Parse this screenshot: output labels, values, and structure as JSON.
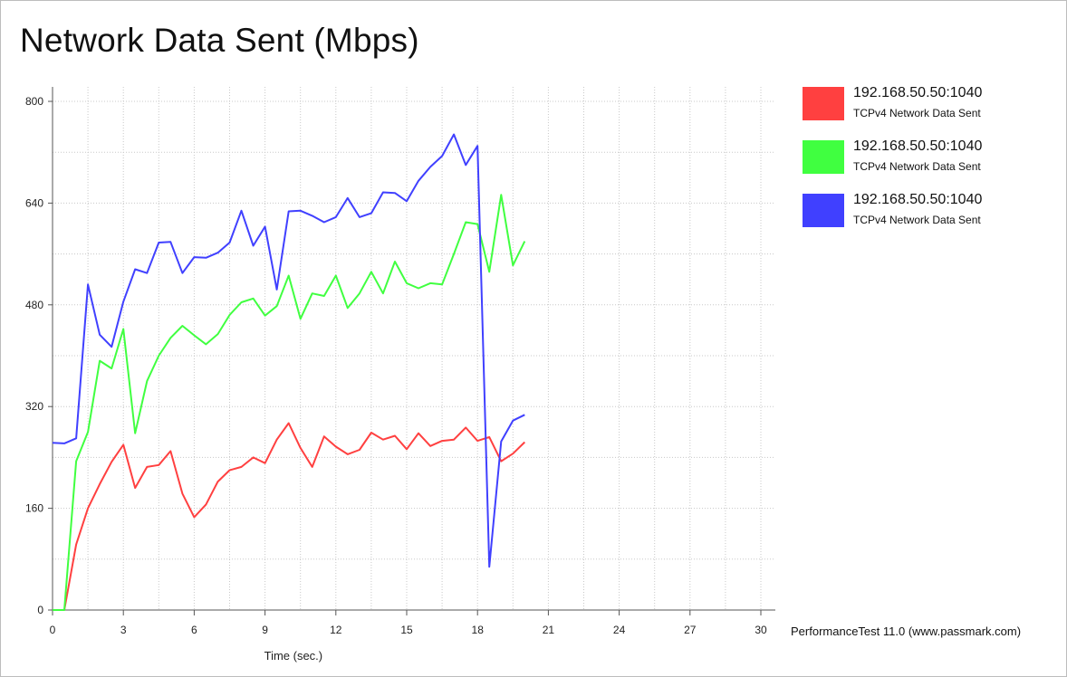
{
  "title": "Network Data Sent (Mbps)",
  "footer": "PerformanceTest 11.0 (www.passmark.com)",
  "chart_data": {
    "type": "line",
    "xlabel": "Time (sec.)",
    "ylabel": "",
    "xlim": [
      0,
      30
    ],
    "ylim": [
      0,
      800
    ],
    "xticks": [
      0,
      3,
      6,
      9,
      12,
      15,
      18,
      21,
      24,
      27,
      30
    ],
    "yticks": [
      0,
      160,
      320,
      480,
      640,
      800
    ],
    "grid": true,
    "legend_placement": "right",
    "x": [
      0,
      0.5,
      1,
      1.5,
      2,
      2.5,
      3,
      3.5,
      4,
      4.5,
      5,
      5.5,
      6,
      6.5,
      7,
      7.5,
      8,
      8.5,
      9,
      9.5,
      10,
      10.5,
      11,
      11.5,
      12,
      12.5,
      13,
      13.5,
      14,
      14.5,
      15,
      15.5,
      16,
      16.5,
      17,
      17.5,
      18,
      18.5,
      19,
      19.5,
      20
    ],
    "series": [
      {
        "name": "192.168.50.50:1040",
        "subtitle": "TCPv4 Network Data Sent",
        "color": "#ff4040",
        "values": [
          0,
          0,
          103,
          160,
          198,
          233,
          260,
          192,
          225,
          228,
          250,
          183,
          146,
          166,
          202,
          220,
          225,
          240,
          231,
          268,
          294,
          255,
          225,
          273,
          257,
          245,
          252,
          279,
          268,
          274,
          253,
          278,
          258,
          266,
          268,
          287,
          266,
          272,
          234,
          246,
          264
        ]
      },
      {
        "name": "192.168.50.50:1040",
        "subtitle": "TCPv4 Network Data Sent",
        "color": "#40ff40",
        "values": [
          0,
          0,
          234,
          280,
          392,
          380,
          442,
          278,
          360,
          400,
          428,
          447,
          432,
          418,
          434,
          464,
          484,
          490,
          463,
          478,
          526,
          458,
          498,
          494,
          526,
          475,
          498,
          532,
          498,
          548,
          514,
          506,
          514,
          512,
          560,
          610,
          607,
          532,
          653,
          542,
          580
        ]
      },
      {
        "name": "192.168.50.50:1040",
        "subtitle": "TCPv4 Network Data Sent",
        "color": "#4040ff",
        "values": [
          263,
          262,
          270,
          512,
          433,
          414,
          485,
          536,
          530,
          578,
          579,
          530,
          555,
          554,
          562,
          578,
          628,
          573,
          603,
          504,
          627,
          628,
          620,
          610,
          618,
          648,
          618,
          624,
          657,
          656,
          643,
          675,
          697,
          714,
          748,
          700,
          730,
          68,
          265,
          298,
          307
        ]
      }
    ]
  }
}
